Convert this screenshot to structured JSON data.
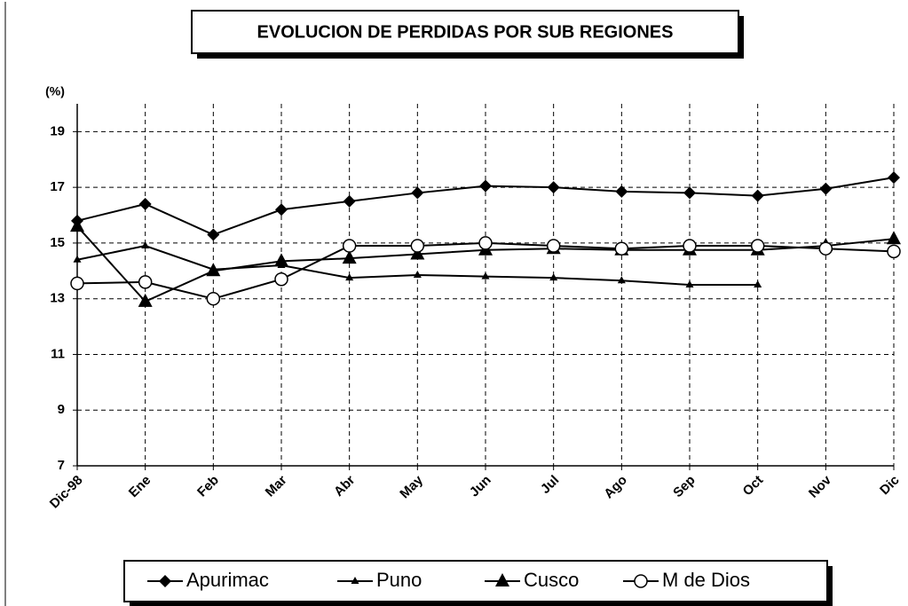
{
  "chart_data": {
    "type": "line",
    "title": "EVOLUCION DE PERDIDAS  POR SUB REGIONES",
    "y_label": "(%)",
    "categories": [
      "Dic-98",
      "Ene",
      "Feb",
      "Mar",
      "Abr",
      "May",
      "Jun",
      "Jul",
      "Ago",
      "Sep",
      "Oct",
      "Nov",
      "Dic"
    ],
    "series": [
      {
        "name": "Apurimac",
        "color": "#000000",
        "marker": "diamond",
        "values": [
          15.8,
          16.4,
          15.3,
          16.2,
          16.5,
          16.8,
          17.05,
          17.0,
          16.85,
          16.8,
          16.7,
          16.95,
          17.35
        ]
      },
      {
        "name": "Puno",
        "color": "#000000",
        "marker": "small-triangle",
        "values": [
          14.4,
          14.9,
          14.05,
          14.2,
          13.75,
          13.85,
          13.8,
          13.75,
          13.65,
          13.5,
          13.5,
          null,
          null
        ]
      },
      {
        "name": "Cusco",
        "color": "#000000",
        "marker": "triangle",
        "values": [
          15.6,
          12.9,
          14.0,
          14.35,
          14.45,
          14.6,
          14.75,
          14.8,
          14.75,
          14.75,
          14.75,
          14.9,
          15.15
        ]
      },
      {
        "name": "M de Dios",
        "color": "#000000",
        "marker": "circle",
        "values": [
          13.55,
          13.6,
          13.0,
          13.7,
          14.9,
          14.9,
          15.0,
          14.9,
          14.8,
          14.9,
          14.9,
          14.8,
          14.7
        ]
      }
    ],
    "ylim": [
      7,
      20
    ],
    "yticks": [
      7,
      9,
      11,
      13,
      15,
      17,
      19
    ],
    "grid": true,
    "legend": "bottom"
  }
}
